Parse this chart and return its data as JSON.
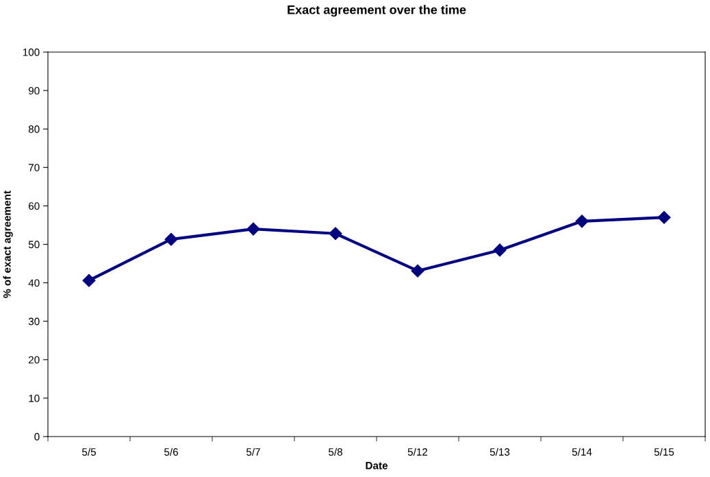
{
  "chart_data": {
    "type": "line",
    "title": "Exact agreement over the time",
    "xlabel": "Date",
    "ylabel": "% of exact agreement",
    "categories": [
      "5/5",
      "5/6",
      "5/7",
      "5/8",
      "5/12",
      "5/13",
      "5/14",
      "5/15"
    ],
    "series": [
      {
        "color": "#000080",
        "values": [
          40.6,
          51.3,
          54.0,
          52.8,
          43.1,
          48.5,
          56.0,
          57.0
        ]
      }
    ],
    "ylim": [
      0,
      100
    ],
    "yticks": [
      0,
      10,
      20,
      30,
      40,
      50,
      60,
      70,
      80,
      90,
      100
    ],
    "grid": false,
    "legend": false,
    "marker": "diamond",
    "line_style": "solid"
  }
}
